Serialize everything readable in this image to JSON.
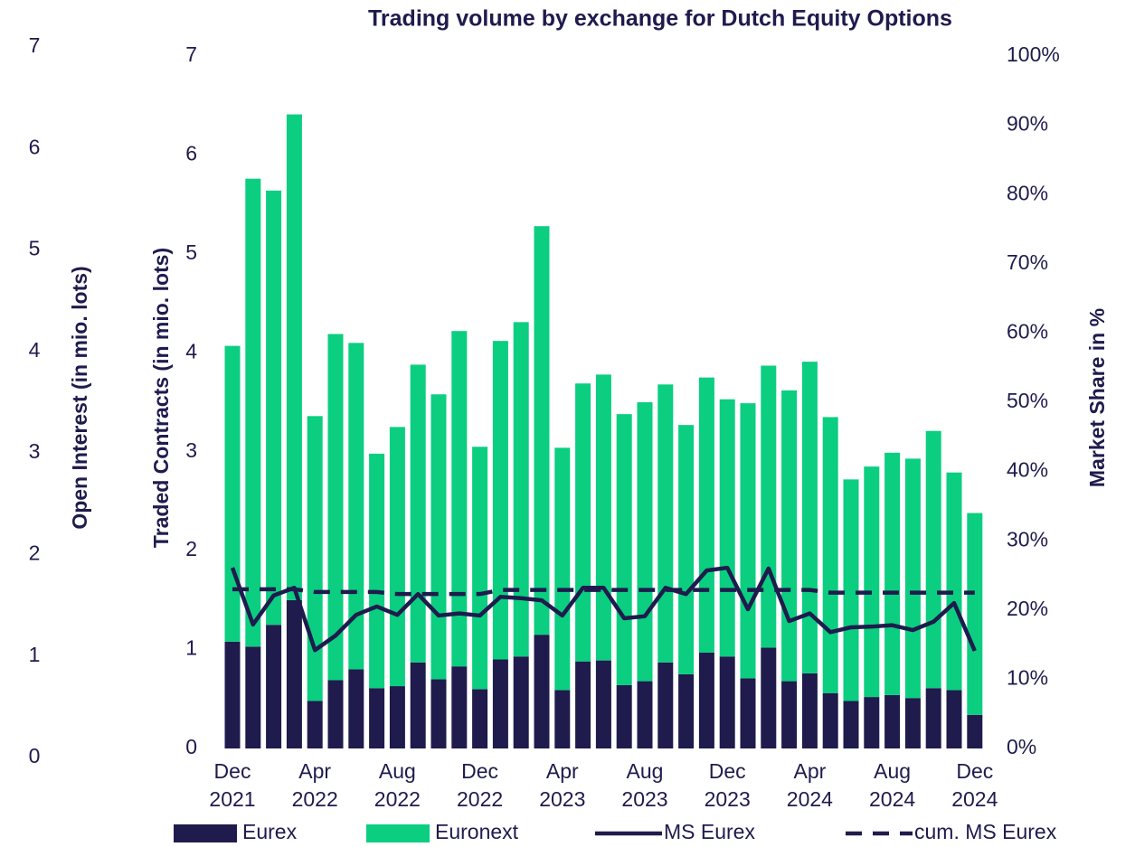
{
  "chart_data": {
    "type": "bar",
    "stacked": true,
    "title": "Trading volume by exchange for Dutch Equity Options",
    "y3_label": "Open Interest (in mio. lots)",
    "y_label": "Traded Contracts (in mio. lots)",
    "y2_label": "Market Share in %",
    "categories": [
      "Dec 2021",
      null,
      null,
      null,
      "Apr 2022",
      null,
      null,
      null,
      "Aug 2022",
      null,
      null,
      null,
      "Dec 2022",
      null,
      null,
      null,
      "Apr 2023",
      null,
      null,
      null,
      "Aug 2023",
      null,
      null,
      null,
      "Dec 2023",
      null,
      null,
      null,
      "Apr 2024",
      null,
      null,
      null,
      "Aug 2024",
      null,
      null,
      null,
      "Dec 2024"
    ],
    "series": [
      {
        "name": "Eurex",
        "type": "bar",
        "color": "#1f1b4d",
        "values": [
          1.08,
          1.03,
          1.25,
          1.5,
          0.48,
          0.69,
          0.8,
          0.61,
          0.63,
          0.87,
          0.7,
          0.83,
          0.6,
          0.9,
          0.93,
          1.15,
          0.59,
          0.88,
          0.89,
          0.64,
          0.68,
          0.87,
          0.75,
          0.97,
          0.93,
          0.71,
          1.02,
          0.68,
          0.76,
          0.56,
          0.48,
          0.52,
          0.54,
          0.51,
          0.61,
          0.59,
          0.34
        ]
      },
      {
        "name": "Euronext",
        "type": "bar",
        "color": "#0bce80",
        "values": [
          2.99,
          4.73,
          4.39,
          4.91,
          2.88,
          3.5,
          3.3,
          2.37,
          2.62,
          3.01,
          2.88,
          3.39,
          2.45,
          3.22,
          3.38,
          4.13,
          2.45,
          2.81,
          2.89,
          2.74,
          2.82,
          2.81,
          2.52,
          2.78,
          2.6,
          2.78,
          2.85,
          2.94,
          3.15,
          2.79,
          2.24,
          2.33,
          2.45,
          2.42,
          2.6,
          2.2,
          2.04
        ]
      },
      {
        "name": "MS Eurex",
        "type": "line",
        "axis": "y2",
        "line_style": "solid",
        "color": "#1f1b4d",
        "values": [
          26.1,
          17.9,
          22.1,
          23.2,
          14.2,
          16.3,
          19.3,
          20.5,
          19.3,
          22.3,
          19.2,
          19.5,
          19.2,
          21.9,
          21.7,
          21.4,
          19.2,
          23.2,
          23.2,
          18.8,
          19.1,
          23.2,
          22.3,
          25.7,
          26.1,
          20.1,
          26.0,
          18.4,
          19.5,
          16.8,
          17.5,
          17.6,
          17.8,
          17.1,
          18.3,
          21.0,
          14.1
        ]
      },
      {
        "name": "cum. MS Eurex",
        "type": "line",
        "axis": "y2",
        "line_style": "dashed",
        "color": "#1f1b4d",
        "values": [
          23.0,
          23.0,
          23.0,
          23.0,
          22.6,
          22.6,
          22.6,
          22.6,
          22.3,
          22.3,
          22.3,
          22.3,
          22.3,
          22.9,
          22.9,
          22.9,
          22.9,
          22.9,
          22.9,
          22.9,
          22.9,
          22.9,
          22.9,
          22.9,
          22.9,
          22.9,
          22.9,
          22.9,
          22.9,
          22.5,
          22.5,
          22.5,
          22.5,
          22.5,
          22.5,
          22.5,
          22.5
        ]
      }
    ],
    "ylim": [
      0,
      7
    ],
    "yticks": [
      0,
      1,
      2,
      3,
      4,
      5,
      6,
      7
    ],
    "y3lim": [
      0,
      7
    ],
    "y3ticks": [
      0,
      1,
      2,
      3,
      4,
      5,
      6,
      7
    ],
    "y2lim": [
      0,
      100
    ],
    "y2ticks": [
      {
        "value": 0,
        "label": "0%"
      },
      {
        "value": 10,
        "label": "10%"
      },
      {
        "value": 20,
        "label": "20%"
      },
      {
        "value": 30,
        "label": "30%"
      },
      {
        "value": 40,
        "label": "40%"
      },
      {
        "value": 50,
        "label": "50%"
      },
      {
        "value": 60,
        "label": "60%"
      },
      {
        "value": 70,
        "label": "70%"
      },
      {
        "value": 80,
        "label": "80%"
      },
      {
        "value": 90,
        "label": "90%"
      },
      {
        "value": 100,
        "label": "100%"
      }
    ],
    "grid": false,
    "legend": "bottom"
  }
}
